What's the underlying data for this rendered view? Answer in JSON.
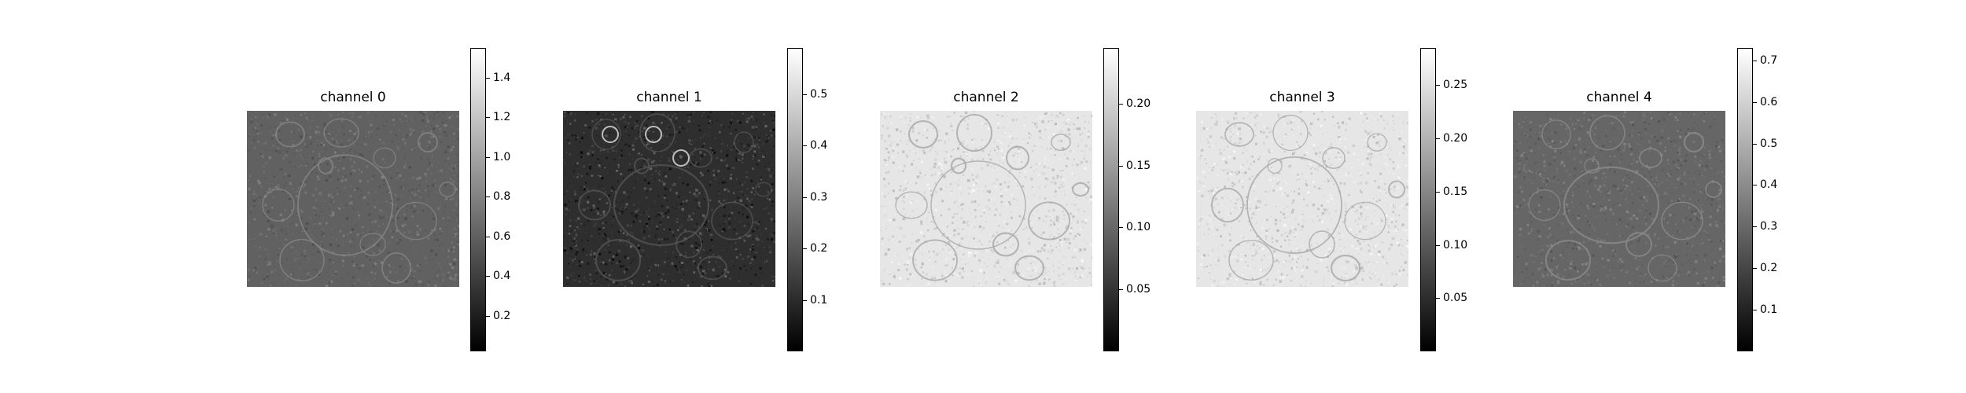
{
  "chart_data": [
    {
      "type": "heatmap",
      "title": "channel 0",
      "colormap": "gray",
      "colorbar": {
        "min": 0.02,
        "max": 1.55,
        "ticks": [
          0.2,
          0.4,
          0.6,
          0.8,
          1.0,
          1.2,
          1.4
        ],
        "tick_labels": [
          "0.2",
          "0.4",
          "0.6",
          "0.8",
          "1.0",
          "1.2",
          "1.4"
        ]
      },
      "image_tone": 0.38,
      "axes": "off"
    },
    {
      "type": "heatmap",
      "title": "channel 1",
      "colormap": "gray",
      "colorbar": {
        "min": 0.0,
        "max": 0.59,
        "ticks": [
          0.1,
          0.2,
          0.3,
          0.4,
          0.5
        ],
        "tick_labels": [
          "0.1",
          "0.2",
          "0.3",
          "0.4",
          "0.5"
        ]
      },
      "image_tone": 0.18,
      "axes": "off"
    },
    {
      "type": "heatmap",
      "title": "channel 2",
      "colormap": "gray",
      "colorbar": {
        "min": 0.0,
        "max": 0.245,
        "ticks": [
          0.05,
          0.1,
          0.15,
          0.2
        ],
        "tick_labels": [
          "0.05",
          "0.10",
          "0.15",
          "0.20"
        ]
      },
      "image_tone": 0.9,
      "axes": "off"
    },
    {
      "type": "heatmap",
      "title": "channel 3",
      "colormap": "gray",
      "colorbar": {
        "min": 0.0,
        "max": 0.285,
        "ticks": [
          0.05,
          0.1,
          0.15,
          0.2,
          0.25
        ],
        "tick_labels": [
          "0.05",
          "0.10",
          "0.15",
          "0.20",
          "0.25"
        ]
      },
      "image_tone": 0.9,
      "axes": "off"
    },
    {
      "type": "heatmap",
      "title": "channel 4",
      "colormap": "gray",
      "colorbar": {
        "min": 0.0,
        "max": 0.73,
        "ticks": [
          0.1,
          0.2,
          0.3,
          0.4,
          0.5,
          0.6,
          0.7
        ],
        "tick_labels": [
          "0.1",
          "0.2",
          "0.3",
          "0.4",
          "0.5",
          "0.6",
          "0.7"
        ]
      },
      "image_tone": 0.4,
      "axes": "off"
    }
  ]
}
